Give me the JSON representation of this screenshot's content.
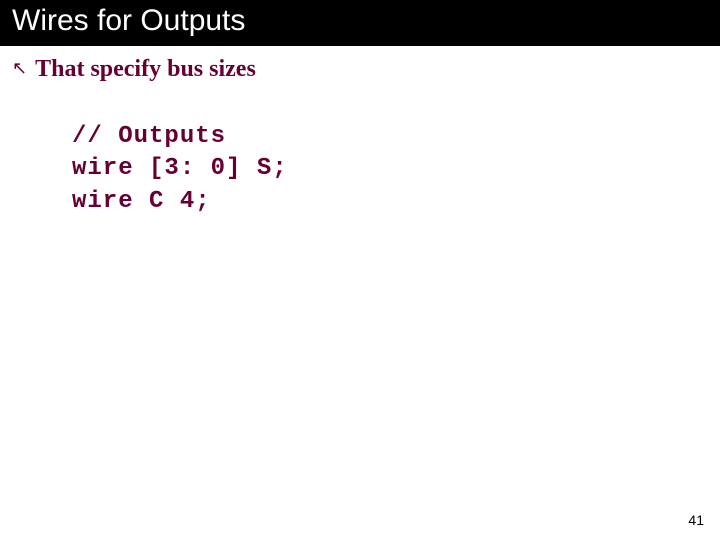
{
  "title": "Wires for Outputs",
  "bullet": {
    "marker": "↖",
    "text": "That specify bus sizes"
  },
  "code": {
    "line1": "// Outputs",
    "line2": "wire [3: 0] S;",
    "line3": "wire C 4;"
  },
  "page_number": "41",
  "colors": {
    "title_bg": "#000000",
    "title_fg": "#ffffff",
    "accent": "#660033",
    "page_bg": "#ffffff"
  },
  "fonts": {
    "title_size_pt": 30,
    "bullet_size_pt": 24,
    "code_size_pt": 24,
    "pagenum_size_pt": 14
  }
}
